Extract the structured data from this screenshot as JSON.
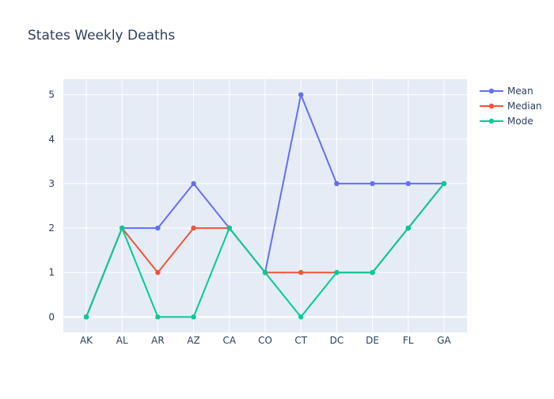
{
  "chart_data": {
    "type": "line",
    "title": "States Weekly Deaths",
    "xlabel": "",
    "ylabel": "",
    "categories": [
      "AK",
      "AL",
      "AR",
      "AZ",
      "CA",
      "CO",
      "CT",
      "DC",
      "DE",
      "FL",
      "GA"
    ],
    "ylim": [
      -0.35,
      5.35
    ],
    "yticks": [
      0,
      1,
      2,
      3,
      4,
      5
    ],
    "grid": true,
    "legend_position": "top-right",
    "plot_background": "#E5ECF6",
    "series": [
      {
        "name": "Mean",
        "color": "#636EFA",
        "values": [
          0,
          2,
          2,
          3,
          2,
          1,
          5,
          3,
          3,
          3,
          3
        ]
      },
      {
        "name": "Median",
        "color": "#EF553B",
        "values": [
          0,
          2,
          1,
          2,
          2,
          1,
          1,
          1,
          1,
          2,
          3
        ]
      },
      {
        "name": "Mode",
        "color": "#00CC96",
        "values": [
          0,
          2,
          0,
          0,
          2,
          1,
          0,
          1,
          1,
          2,
          3
        ]
      }
    ]
  }
}
